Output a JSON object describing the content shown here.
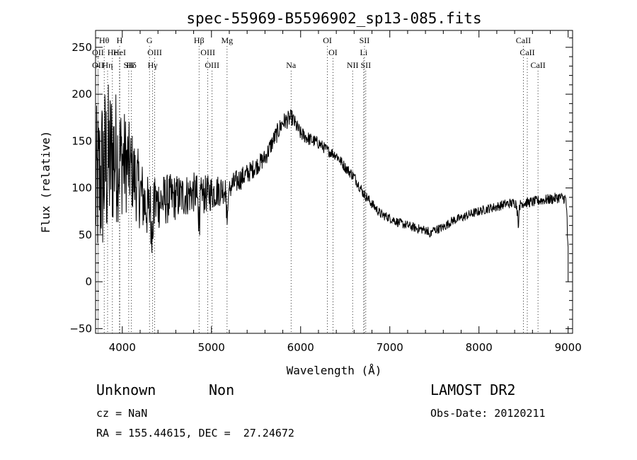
{
  "chart_data": {
    "type": "line",
    "title": "spec-55969-B5596902_sp13-085.fits",
    "xlabel": "Wavelength (Å)",
    "ylabel": "Flux (relative)",
    "xlim": [
      3700,
      9050
    ],
    "ylim": [
      -55,
      268
    ],
    "xticks": [
      4000,
      5000,
      6000,
      7000,
      8000,
      9000
    ],
    "yticks": [
      -50,
      0,
      50,
      100,
      150,
      200,
      250
    ],
    "grid": false,
    "color": "#000000",
    "continuum": [
      [
        3700,
        95
      ],
      [
        3800,
        120
      ],
      [
        3900,
        135
      ],
      [
        4000,
        130
      ],
      [
        4100,
        120
      ],
      [
        4200,
        95
      ],
      [
        4300,
        75
      ],
      [
        4400,
        85
      ],
      [
        4500,
        88
      ],
      [
        4600,
        90
      ],
      [
        4700,
        92
      ],
      [
        4800,
        95
      ],
      [
        4900,
        92
      ],
      [
        5000,
        95
      ],
      [
        5100,
        98
      ],
      [
        5200,
        100
      ],
      [
        5300,
        108
      ],
      [
        5400,
        115
      ],
      [
        5500,
        123
      ],
      [
        5600,
        132
      ],
      [
        5700,
        152
      ],
      [
        5800,
        170
      ],
      [
        5900,
        175
      ],
      [
        6000,
        158
      ],
      [
        6100,
        152
      ],
      [
        6200,
        148
      ],
      [
        6300,
        140
      ],
      [
        6400,
        135
      ],
      [
        6500,
        122
      ],
      [
        6600,
        112
      ],
      [
        6700,
        95
      ],
      [
        6800,
        83
      ],
      [
        6900,
        72
      ],
      [
        7000,
        68
      ],
      [
        7100,
        63
      ],
      [
        7200,
        60
      ],
      [
        7300,
        57
      ],
      [
        7400,
        55
      ],
      [
        7500,
        55
      ],
      [
        7600,
        58
      ],
      [
        7700,
        65
      ],
      [
        7800,
        68
      ],
      [
        7900,
        72
      ],
      [
        8000,
        75
      ],
      [
        8100,
        78
      ],
      [
        8200,
        80
      ],
      [
        8300,
        83
      ],
      [
        8400,
        84
      ],
      [
        8500,
        84
      ],
      [
        8600,
        85
      ],
      [
        8700,
        87
      ],
      [
        8800,
        88
      ],
      [
        8900,
        90
      ],
      [
        9000,
        88
      ]
    ],
    "noise": [
      [
        3700,
        90
      ],
      [
        3800,
        95
      ],
      [
        3900,
        80
      ],
      [
        4000,
        60
      ],
      [
        4100,
        45
      ],
      [
        4200,
        40
      ],
      [
        4400,
        30
      ],
      [
        4600,
        25
      ],
      [
        4800,
        22
      ],
      [
        5000,
        20
      ],
      [
        5200,
        14
      ],
      [
        5500,
        10
      ],
      [
        5800,
        10
      ],
      [
        6000,
        8
      ],
      [
        6300,
        6
      ],
      [
        6600,
        6
      ],
      [
        7000,
        5
      ],
      [
        8000,
        5
      ],
      [
        9000,
        6
      ]
    ],
    "dips": [
      {
        "x": 4340,
        "depth": 35
      },
      {
        "x": 4861,
        "depth": 35
      },
      {
        "x": 5175,
        "depth": 35
      },
      {
        "x": 7450,
        "depth": 10
      },
      {
        "x": 8440,
        "depth": 25
      },
      {
        "x": 9000,
        "depth": 70
      }
    ],
    "lines": [
      {
        "label": "Hθ",
        "x": 3797,
        "row": 0
      },
      {
        "label": "H",
        "x": 3970,
        "row": 0
      },
      {
        "label": "G",
        "x": 4305,
        "row": 0
      },
      {
        "label": "Hβ",
        "x": 4861,
        "row": 0
      },
      {
        "label": "Mg",
        "x": 5175,
        "row": 0
      },
      {
        "label": "OI",
        "x": 6300,
        "row": 0
      },
      {
        "label": "SII",
        "x": 6716,
        "row": 0
      },
      {
        "label": "CaII",
        "x": 8498,
        "row": 0
      },
      {
        "label": "OII",
        "x": 3727,
        "row": 1
      },
      {
        "label": "He",
        "x": 3889,
        "row": 1
      },
      {
        "label": "HeI",
        "x": 3970,
        "row": 1
      },
      {
        "label": "OIII",
        "x": 4363,
        "row": 1
      },
      {
        "label": "OIII",
        "x": 4959,
        "row": 1
      },
      {
        "label": "OI",
        "x": 6363,
        "row": 1
      },
      {
        "label": "Li",
        "x": 6707,
        "row": 1
      },
      {
        "label": "CaII",
        "x": 8542,
        "row": 1
      },
      {
        "label": "OII",
        "x": 3727,
        "row": 2
      },
      {
        "label": "Hη",
        "x": 3835,
        "row": 2
      },
      {
        "label": "Hδ",
        "x": 4102,
        "row": 2
      },
      {
        "label": "SII",
        "x": 4072,
        "row": 2
      },
      {
        "label": "Hγ",
        "x": 4340,
        "row": 2
      },
      {
        "label": "OIII",
        "x": 5007,
        "row": 2
      },
      {
        "label": "Na",
        "x": 5893,
        "row": 2
      },
      {
        "label": "NII",
        "x": 6583,
        "row": 2
      },
      {
        "label": "SII",
        "x": 6731,
        "row": 2
      },
      {
        "label": "CaII",
        "x": 8662,
        "row": 2
      }
    ]
  },
  "info": {
    "class": "Unknown",
    "subclass": "Non",
    "survey": "LAMOST DR2",
    "cz": "cz = NaN",
    "obs_date": "Obs-Date: 20120211",
    "coords": "RA = 155.44615, DEC =  27.24672"
  }
}
